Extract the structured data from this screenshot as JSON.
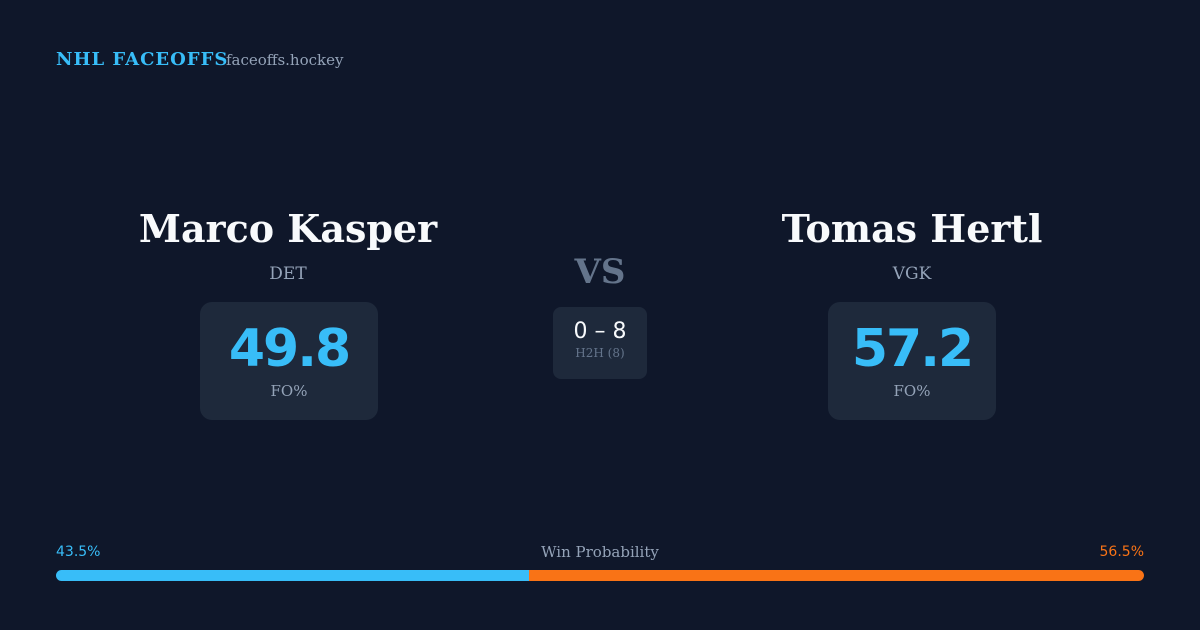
{
  "header": {
    "title": "NHL FACEOFFS",
    "site": "faceoffs.hockey"
  },
  "players": [
    {
      "name": "Marco Kasper",
      "team": "DET",
      "fo_pct": 49.8,
      "fo_label": "FO%"
    },
    {
      "name": "Tomas Hertl",
      "team": "VGK",
      "fo_pct": 57.2,
      "fo_label": "FO%"
    }
  ],
  "vs": "VS",
  "h2h": {
    "score": "0 – 8",
    "label": "H2H (8)"
  },
  "win_probability": {
    "label": "Win Probability",
    "left": {
      "value": 43.5,
      "label": "43.5%"
    },
    "right": {
      "value": 56.5,
      "label": "56.5%"
    }
  }
}
